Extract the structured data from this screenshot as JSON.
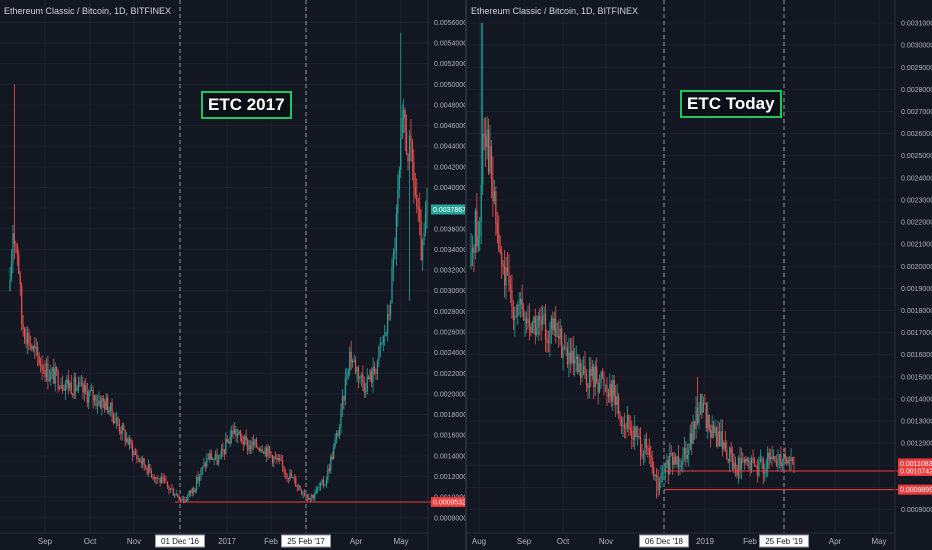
{
  "chart_data": [
    {
      "type": "candlestick",
      "symbol": "Ethereum Classic / Bitcoin, 1D, BITFINEX",
      "annotation": "ETC 2017",
      "y_ticks": [
        "0.0056000",
        "0.0054000",
        "0.0052000",
        "0.0050000",
        "0.0048000",
        "0.0046000",
        "0.0044000",
        "0.0042000",
        "0.0040000",
        "0.0038000",
        "0.0036000",
        "0.0034000",
        "0.0032000",
        "0.0030000",
        "0.0028000",
        "0.0026000",
        "0.0024000",
        "0.0022000",
        "0.0020000",
        "0.0018000",
        "0.0016000",
        "0.0014000",
        "0.0012000",
        "0.0010000",
        "0.0008000"
      ],
      "ylim": [
        0.00073,
        0.0057
      ],
      "x_ticks": [
        "Sep",
        "Oct",
        "Nov",
        "01 Dec '16",
        "2017",
        "Feb",
        "25 Feb '17",
        "Apr",
        "May"
      ],
      "marked_dates": [
        "01 Dec '16",
        "25 Feb '17"
      ],
      "price_labels": [
        {
          "text": "0.0037867",
          "value": 0.0037867,
          "color": "#26a69a"
        },
        {
          "text": "0.0009532",
          "value": 0.0009532,
          "color": "#ef3b3b"
        }
      ],
      "hline_value": 0.0009532,
      "path": [
        [
          0,
          0.003
        ],
        [
          3,
          0.0036
        ],
        [
          8,
          0.0034
        ],
        [
          12,
          0.0027
        ],
        [
          25,
          0.0024
        ],
        [
          40,
          0.0022
        ],
        [
          60,
          0.0021
        ],
        [
          80,
          0.002
        ],
        [
          100,
          0.0019
        ],
        [
          115,
          0.00165
        ],
        [
          130,
          0.0014
        ],
        [
          150,
          0.0012
        ],
        [
          165,
          0.00108
        ],
        [
          180,
          0.00097
        ],
        [
          190,
          0.0011
        ],
        [
          205,
          0.0014
        ],
        [
          215,
          0.00135
        ],
        [
          230,
          0.00165
        ],
        [
          245,
          0.0015
        ],
        [
          260,
          0.0015
        ],
        [
          280,
          0.0013
        ],
        [
          300,
          0.00108
        ],
        [
          310,
          0.001
        ],
        [
          325,
          0.00115
        ],
        [
          340,
          0.0017
        ],
        [
          350,
          0.0024
        ],
        [
          365,
          0.0021
        ],
        [
          375,
          0.0022
        ],
        [
          390,
          0.0027
        ],
        [
          398,
          0.0036
        ],
        [
          405,
          0.0046
        ],
        [
          415,
          0.0042
        ],
        [
          425,
          0.0033
        ],
        [
          430,
          0.00379
        ]
      ],
      "spikes": [
        {
          "day": 4,
          "high": 0.005
        },
        {
          "day": 403,
          "high": 0.0055
        },
        {
          "day": 412,
          "low": 0.0029
        }
      ]
    },
    {
      "type": "candlestick",
      "symbol": "Ethereum Classic / Bitcoin, 1D, BITFINEX",
      "annotation": "ETC Today",
      "y_ticks": [
        "0.0031000",
        "0.0030000",
        "0.0029000",
        "0.0028000",
        "0.0027000",
        "0.0026000",
        "0.0025000",
        "0.0024000",
        "0.0023000",
        "0.0022000",
        "0.0021000",
        "0.0020000",
        "0.0019000",
        "0.0018000",
        "0.0017000",
        "0.0016000",
        "0.0015000",
        "0.0014000",
        "0.0013000",
        "0.0012000",
        "0.0011000",
        "0.0010000",
        "0.0009000"
      ],
      "ylim": [
        0.00083,
        0.00315
      ],
      "x_ticks": [
        "Aug",
        "Sep",
        "Oct",
        "Nov",
        "06 Dec '18",
        "2019",
        "Feb",
        "25 Feb '19",
        "Apr",
        "May"
      ],
      "marked_dates": [
        "06 Dec '18",
        "25 Feb '19"
      ],
      "price_labels": [
        {
          "text": "0.0011083",
          "value": 0.0011083,
          "color": "#ef3b3b"
        },
        {
          "text": "0.0010742",
          "value": 0.0010742,
          "color": "#ef3b3b"
        },
        {
          "text": "0.0009899",
          "value": 0.0009899,
          "color": "#ef3b3b"
        }
      ],
      "hlines": [
        0.0010742,
        0.0009899
      ],
      "path": [
        [
          0,
          0.002
        ],
        [
          4,
          0.0022
        ],
        [
          8,
          0.0021
        ],
        [
          12,
          0.0027
        ],
        [
          16,
          0.0026
        ],
        [
          22,
          0.0023
        ],
        [
          30,
          0.002
        ],
        [
          40,
          0.00185
        ],
        [
          55,
          0.00175
        ],
        [
          70,
          0.00172
        ],
        [
          85,
          0.0017
        ],
        [
          100,
          0.00155
        ],
        [
          110,
          0.0015
        ],
        [
          125,
          0.0015
        ],
        [
          140,
          0.00145
        ],
        [
          150,
          0.0013
        ],
        [
          160,
          0.00125
        ],
        [
          175,
          0.00115
        ],
        [
          185,
          0.001
        ],
        [
          195,
          0.0011
        ],
        [
          210,
          0.00115
        ],
        [
          220,
          0.00125
        ],
        [
          228,
          0.0014
        ],
        [
          238,
          0.00125
        ],
        [
          250,
          0.0012
        ],
        [
          260,
          0.0011
        ],
        [
          275,
          0.0011
        ],
        [
          290,
          0.0011
        ],
        [
          300,
          0.00112
        ],
        [
          310,
          0.00115
        ],
        [
          320,
          0.00111
        ]
      ],
      "spikes": [
        {
          "day": 11,
          "high": 0.0031
        },
        {
          "day": 184,
          "low": 0.00095
        },
        {
          "day": 225,
          "high": 0.0015
        }
      ]
    }
  ]
}
